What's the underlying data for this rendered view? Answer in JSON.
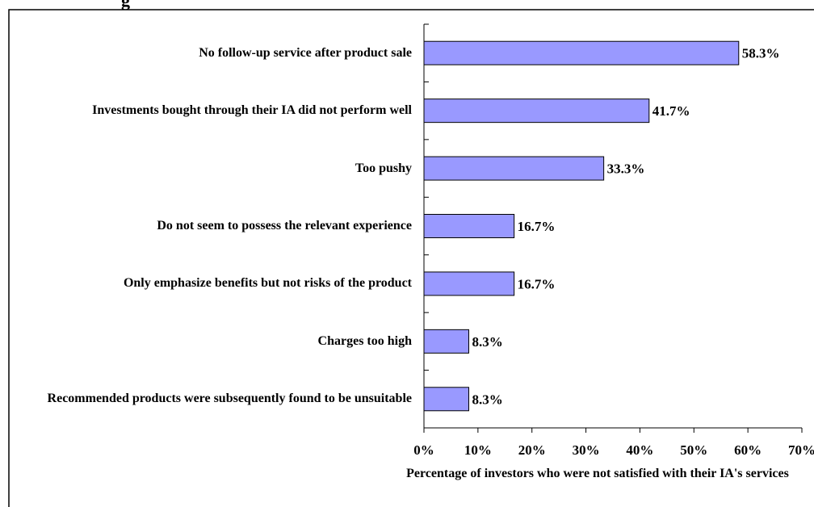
{
  "title_fragment": "g",
  "chart_data": {
    "type": "bar",
    "orientation": "horizontal",
    "categories": [
      "No follow-up service after product sale",
      "Investments bought through their IA did not perform well",
      "Too pushy",
      "Do not seem to possess the relevant experience",
      "Only emphasize benefits but not risks of the product",
      "Charges too high",
      "Recommended products were subsequently found to be unsuitable"
    ],
    "values": [
      58.3,
      41.7,
      33.3,
      16.7,
      16.7,
      8.3,
      8.3
    ],
    "value_labels": [
      "58.3%",
      "41.7%",
      "33.3%",
      "16.7%",
      "16.7%",
      "8.3%",
      "8.3%"
    ],
    "xlim": [
      0,
      70
    ],
    "xticks": [
      "0%",
      "10%",
      "20%",
      "30%",
      "40%",
      "50%",
      "60%",
      "70%"
    ],
    "xlabel": "Percentage of investors who were not satisfied with their IA's services",
    "bar_color": "#9999ff",
    "grid": false
  }
}
